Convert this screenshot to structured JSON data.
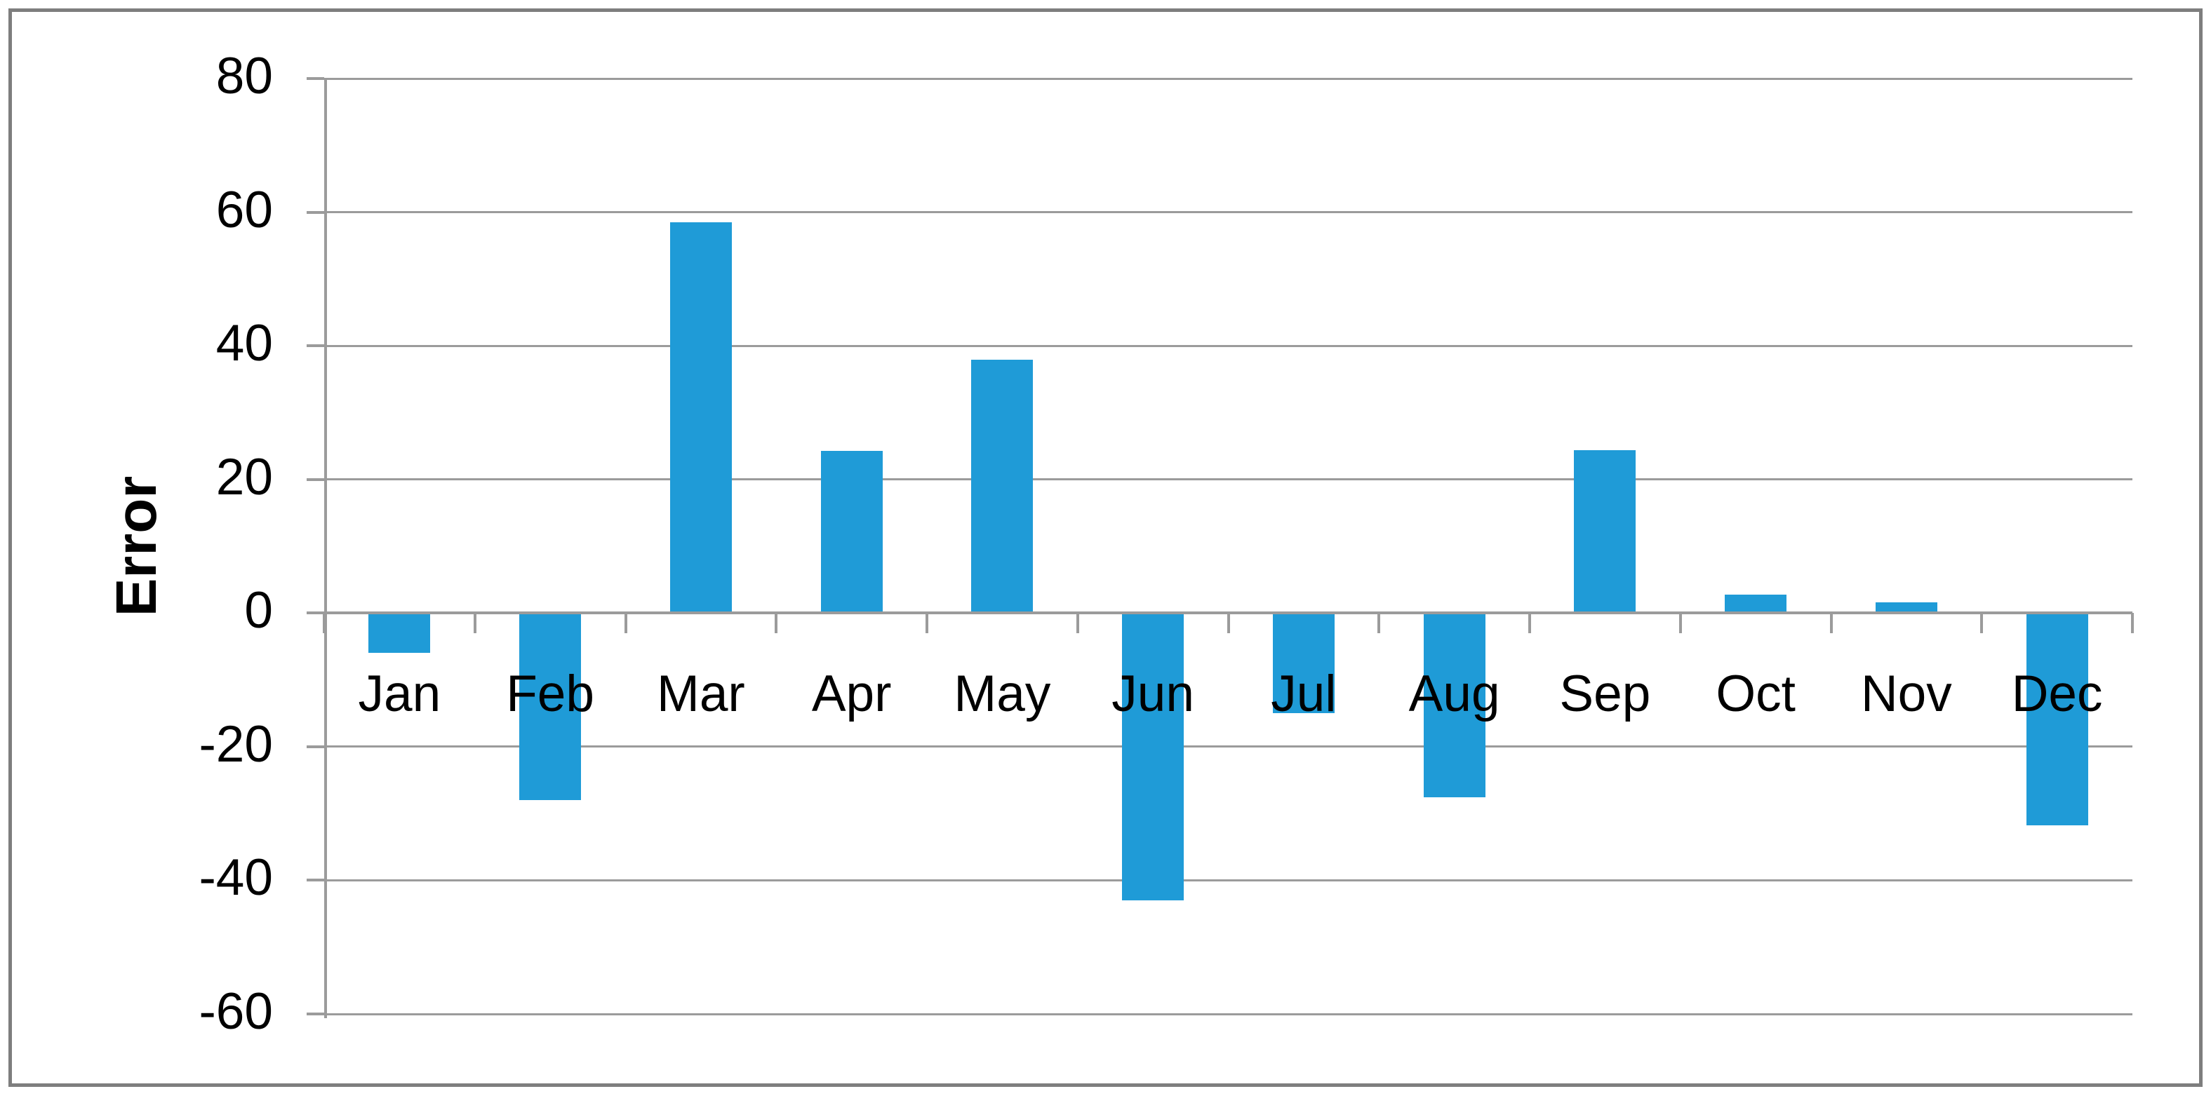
{
  "chart_data": {
    "type": "bar",
    "title": "",
    "ylabel": "Error",
    "xlabel": "",
    "categories": [
      "Jan",
      "Feb",
      "Mar",
      "Apr",
      "May",
      "Jun",
      "Jul",
      "Aug",
      "Sep",
      "Oct",
      "Nov",
      "Dec"
    ],
    "values": [
      -6,
      -28,
      58.5,
      24.3,
      37.9,
      -43,
      -15,
      -27.6,
      24.4,
      2.8,
      1.6,
      -31.8
    ],
    "yticks": [
      80,
      60,
      40,
      20,
      0,
      -20,
      -40,
      -60
    ],
    "ytick_labels": [
      "80",
      "60",
      "40",
      "20",
      "0",
      "-20",
      "-40",
      "-60"
    ],
    "ylim": [
      -60,
      80
    ],
    "grid": "horizontal-only",
    "legend_position": "none",
    "series_name": "Error",
    "colors": {
      "bar": "#1F9BD7",
      "gridline": "#9B9B9B",
      "axis": "#9B9B9B",
      "figure_border": "#7E7E7E",
      "text": "#000000",
      "background": "#FFFFFF"
    }
  }
}
